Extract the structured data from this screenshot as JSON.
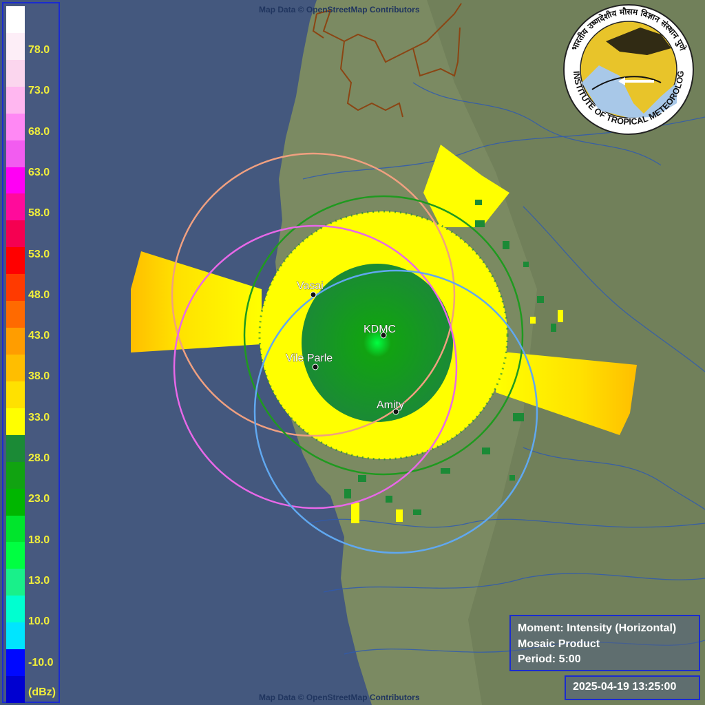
{
  "attribution": "Map Data © OpenStreetMap Contributors",
  "legend": {
    "unit": "(dBz)",
    "ticks": [
      "78.0",
      "73.0",
      "68.0",
      "63.0",
      "58.0",
      "53.0",
      "48.0",
      "43.0",
      "38.0",
      "33.0",
      "28.0",
      "23.0",
      "18.0",
      "13.0",
      "10.0",
      "-10.0"
    ],
    "colors": [
      "#ffffff",
      "#fdeef7",
      "#fbd6ee",
      "#ffb7f0",
      "#ff88f4",
      "#f25cf0",
      "#ff00f4",
      "#ff0b9b",
      "#f50051",
      "#ff0000",
      "#ff3a00",
      "#ff6a00",
      "#ff9d00",
      "#ffbe00",
      "#ffe100",
      "#ffff00",
      "#1b8a36",
      "#11a311",
      "#00b600",
      "#00e52c",
      "#00ff41",
      "#19f08a",
      "#00ffd0",
      "#00e5ff",
      "#0008ff",
      "#0000d0"
    ]
  },
  "info": {
    "moment": "Moment: Intensity (Horizontal)",
    "product": "Mosaic Product",
    "period": "Period: 5:00"
  },
  "timestamp": "2025-04-19 13:25:00",
  "logo": {
    "name": "INDIAN INSTITUTE OF TROPICAL METEOROLOGY PUNE",
    "hindi": "भारतीय उष्णदेशीय मौसम विज्ञान संस्थान पुणे"
  },
  "sites": [
    {
      "name": "Vasai"
    },
    {
      "name": "KDMC"
    },
    {
      "name": "Vile Parle"
    },
    {
      "name": "Amity"
    }
  ],
  "colors": {
    "ocean": "#44587e",
    "land": "#7b8a62",
    "ring_vasai": "#f0a080",
    "ring_kdmc": "#1f9a1f",
    "ring_vileparle": "#e868e8",
    "ring_amity": "#60a8f0",
    "echo_strong": "#1b8a36",
    "echo_mid": "#ffff00",
    "echo_high": "#ffbe00"
  }
}
